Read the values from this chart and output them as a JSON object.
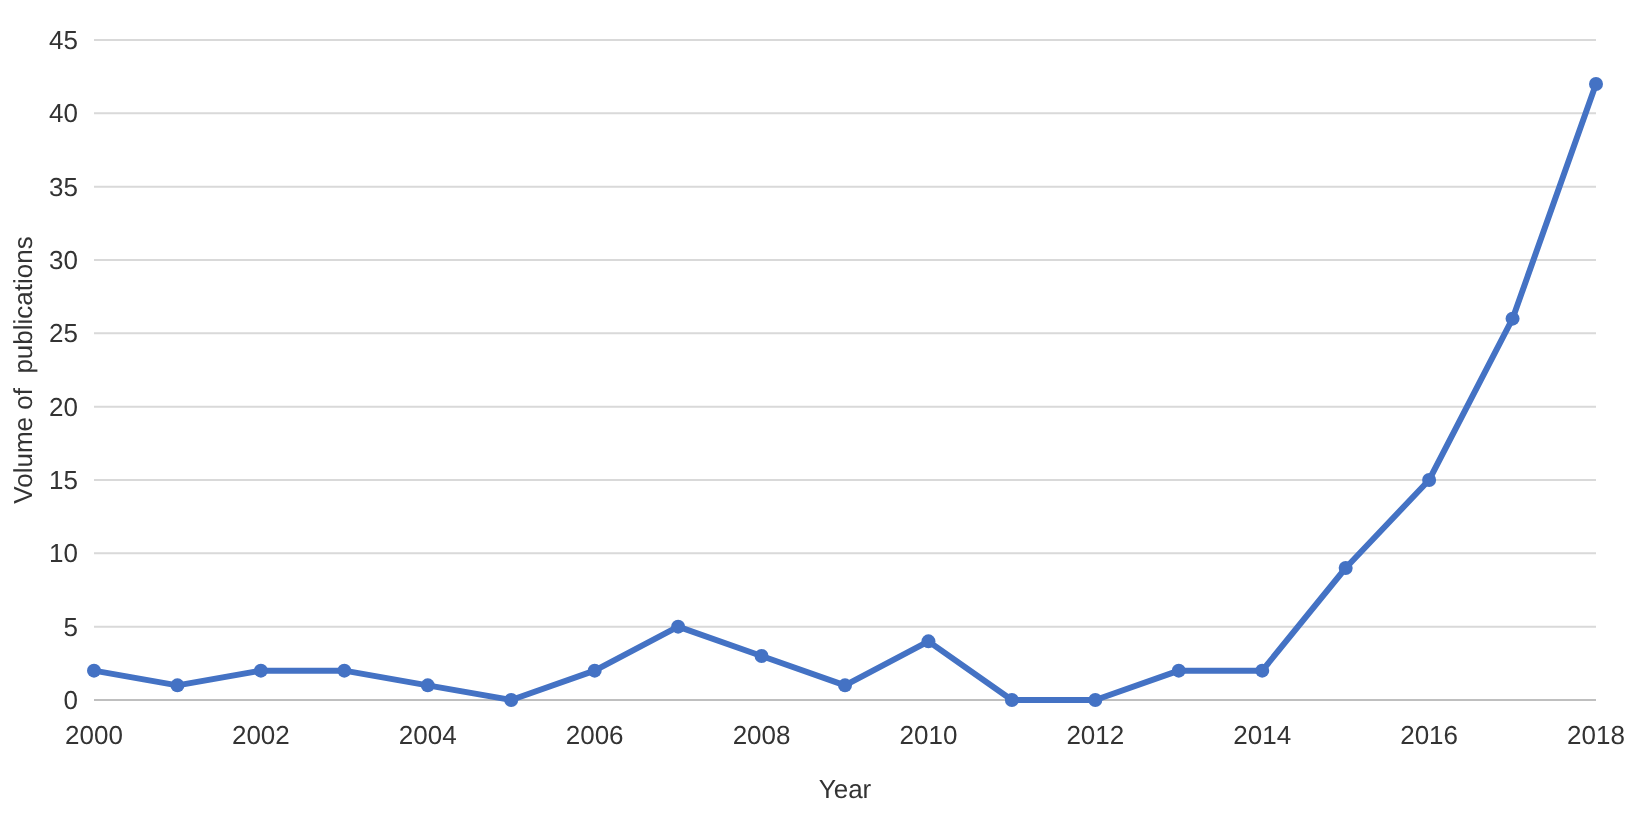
{
  "chart_data": {
    "type": "line",
    "xlabel": "Year",
    "ylabel": "Volume of  publications",
    "x": [
      2000,
      2001,
      2002,
      2003,
      2004,
      2005,
      2006,
      2007,
      2008,
      2009,
      2010,
      2011,
      2012,
      2013,
      2014,
      2015,
      2016,
      2017,
      2018
    ],
    "series": [
      {
        "color": "#4472c4",
        "values": [
          2,
          1,
          2,
          2,
          1,
          0,
          2,
          5,
          3,
          1,
          4,
          0,
          0,
          2,
          2,
          9,
          15,
          26,
          42
        ]
      }
    ],
    "xlim": [
      2000,
      2018
    ],
    "xticks": [
      2000,
      2002,
      2004,
      2006,
      2008,
      2010,
      2012,
      2014,
      2016,
      2018
    ],
    "ylim": [
      0,
      45
    ],
    "yticks": [
      0,
      5,
      10,
      15,
      20,
      25,
      30,
      35,
      40,
      45
    ],
    "grid": "y",
    "marker": "circle",
    "line_style": "solid"
  }
}
